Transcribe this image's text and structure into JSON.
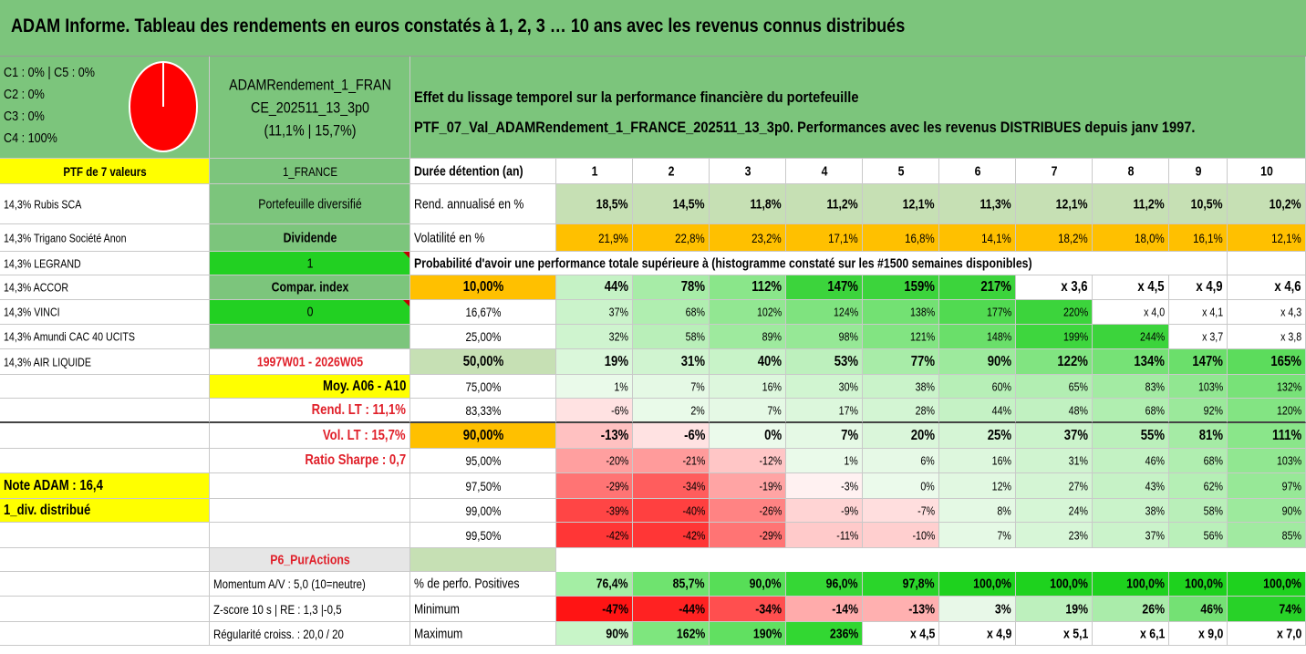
{
  "title": "ADAM Informe. Tableau des rendements en euros constatés à 1, 2, 3 … 10 ans avec les revenus connus distribués",
  "colors": {
    "title_bg": "#7cc57c",
    "panel_bg": "#7cc57c",
    "yellow": "#ffff00",
    "orange": "#ffc000",
    "bright_green": "#22d022",
    "pale_green": "#c6e0b4",
    "red_text": "#e0202a",
    "pie_fill": "#ff0000"
  },
  "info": {
    "comps": [
      "C1 : 0% | C5 : 0%",
      "C2 : 0%",
      "C3 : 0%",
      "C4 : 100%"
    ],
    "pie_c4": 1.0,
    "name_lines": [
      "ADAMRendement_1_FRAN",
      "CE_202511_13_3p0",
      "(11,1% | 15,7%)"
    ],
    "effect_lines": [
      "Effet du lissage temporel sur la performance financière du portefeuille",
      "PTF_07_Val_ADAMRendement_1_FRANCE_202511_13_3p0. Performances avec les revenus DISTRIBUES depuis janv 1997."
    ]
  },
  "ptf_label": "PTF de 7 valeurs",
  "market": "1_FRANCE",
  "duration_label": "Durée détention (an)",
  "years": [
    "1",
    "2",
    "3",
    "4",
    "5",
    "6",
    "7",
    "8",
    "9",
    "10"
  ],
  "holdings": [
    "14,3% Rubis SCA",
    "14,3% Trigano Société Anon",
    "14,3% LEGRAND",
    "14,3% ACCOR",
    "14,3% VINCI",
    "14,3% Amundi CAC 40 UCITS",
    "14,3% AIR LIQUIDE"
  ],
  "middle": {
    "portfolio": "Portefeuille diversifié",
    "dividende": "Dividende",
    "dividende_value": "1",
    "compar": "Compar. index",
    "compar_value": "0",
    "period": "1997W01 - 2026W05",
    "moy": "Moy. A06 - A10",
    "rend_lt": "Rend. LT : 11,1%",
    "vol_lt": "Vol. LT : 15,7%",
    "sharpe": "Ratio Sharpe : 0,7",
    "note": "Note ADAM : 16,4",
    "div": "1_div. distribué",
    "p6": "P6_PurActions"
  },
  "rend": {
    "label": "Rend. annualisé en %",
    "values": [
      "18,5%",
      "14,5%",
      "11,8%",
      "11,2%",
      "12,1%",
      "11,3%",
      "12,1%",
      "11,2%",
      "10,5%",
      "10,2%"
    ]
  },
  "vol": {
    "label": "Volatilité en %",
    "values": [
      "21,9%",
      "22,8%",
      "23,2%",
      "17,1%",
      "16,8%",
      "14,1%",
      "18,2%",
      "18,0%",
      "16,1%",
      "12,1%"
    ]
  },
  "prob_header": "Probabilité d'avoir une performance totale supérieure à (histogramme constaté sur les #1500 semaines disponibles)",
  "prob_rows": [
    {
      "p": "10,00%",
      "values": [
        "44%",
        "78%",
        "112%",
        "147%",
        "159%",
        "217%",
        "x 3,6",
        "x 4,5",
        "x 4,9",
        "x 4,6"
      ]
    },
    {
      "p": "16,67%",
      "values": [
        "37%",
        "68%",
        "102%",
        "124%",
        "138%",
        "177%",
        "220%",
        "x 4,0",
        "x 4,1",
        "x 4,3"
      ]
    },
    {
      "p": "25,00%",
      "values": [
        "32%",
        "58%",
        "89%",
        "98%",
        "121%",
        "148%",
        "199%",
        "244%",
        "x 3,7",
        "x 3,8"
      ]
    },
    {
      "p": "50,00%",
      "values": [
        "19%",
        "31%",
        "40%",
        "53%",
        "77%",
        "90%",
        "122%",
        "134%",
        "147%",
        "165%"
      ]
    },
    {
      "p": "75,00%",
      "values": [
        "1%",
        "7%",
        "16%",
        "30%",
        "38%",
        "60%",
        "65%",
        "83%",
        "103%",
        "132%"
      ]
    },
    {
      "p": "83,33%",
      "values": [
        "-6%",
        "2%",
        "7%",
        "17%",
        "28%",
        "44%",
        "48%",
        "68%",
        "92%",
        "120%"
      ]
    },
    {
      "p": "90,00%",
      "values": [
        "-13%",
        "-6%",
        "0%",
        "7%",
        "20%",
        "25%",
        "37%",
        "55%",
        "81%",
        "111%"
      ]
    },
    {
      "p": "95,00%",
      "values": [
        "-20%",
        "-21%",
        "-12%",
        "1%",
        "6%",
        "16%",
        "31%",
        "46%",
        "68%",
        "103%"
      ]
    },
    {
      "p": "97,50%",
      "values": [
        "-29%",
        "-34%",
        "-19%",
        "-3%",
        "0%",
        "12%",
        "27%",
        "43%",
        "62%",
        "97%"
      ]
    },
    {
      "p": "99,00%",
      "values": [
        "-39%",
        "-40%",
        "-26%",
        "-9%",
        "-7%",
        "8%",
        "24%",
        "38%",
        "58%",
        "90%"
      ]
    },
    {
      "p": "99,50%",
      "values": [
        "-42%",
        "-42%",
        "-29%",
        "-11%",
        "-10%",
        "7%",
        "23%",
        "37%",
        "56%",
        "85%"
      ]
    }
  ],
  "bottom": {
    "momentum": "Momentum A/V : 5,0 (10=neutre)",
    "zscore": "Z-score 10 s | RE : 1,3 |-0,5",
    "regularite": "Régularité croiss. : 20,0 / 20",
    "pos": {
      "label": "% de perfo. Positives",
      "values": [
        "76,4%",
        "85,7%",
        "90,0%",
        "96,0%",
        "97,8%",
        "100,0%",
        "100,0%",
        "100,0%",
        "100,0%",
        "100,0%"
      ]
    },
    "min": {
      "label": "Minimum",
      "values": [
        "-47%",
        "-44%",
        "-34%",
        "-14%",
        "-13%",
        "3%",
        "19%",
        "26%",
        "46%",
        "74%"
      ]
    },
    "max": {
      "label": "Maximum",
      "values": [
        "90%",
        "162%",
        "190%",
        "236%",
        "x 4,5",
        "x 4,9",
        "x 5,1",
        "x 6,1",
        "x 9,0",
        "x 7,0"
      ]
    }
  }
}
